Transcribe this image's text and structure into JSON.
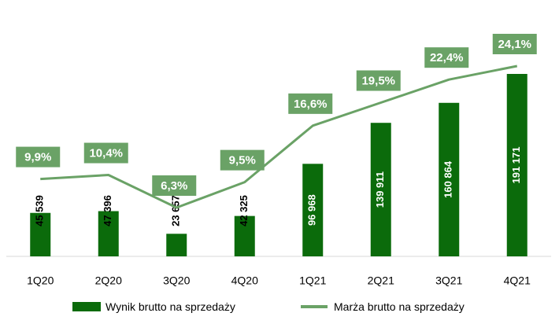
{
  "colors": {
    "bar": "#0b6b0b",
    "line": "#6aa266",
    "label_box": "#6aa266",
    "label_text": "#ffffff",
    "axis": "#d9d9d9"
  },
  "chart_data": {
    "type": "bar",
    "categories": [
      "1Q20",
      "2Q20",
      "3Q20",
      "4Q20",
      "1Q21",
      "2Q21",
      "3Q21",
      "4Q21"
    ],
    "series": [
      {
        "name": "Wynik brutto na sprzedaży",
        "type": "bar",
        "values": [
          45539,
          47396,
          23657,
          42325,
          96968,
          139911,
          160864,
          191171
        ],
        "labels": [
          "45 539",
          "47 396",
          "23 657",
          "42 325",
          "96 968",
          "139 911",
          "160 864",
          "191 171"
        ]
      },
      {
        "name": "Marża brutto na sprzedaży",
        "type": "line",
        "values": [
          9.9,
          10.4,
          6.3,
          9.5,
          16.6,
          19.5,
          22.4,
          24.1
        ],
        "labels": [
          "9,9%",
          "10,4%",
          "6,3%",
          "9,5%",
          "16,6%",
          "19,5%",
          "22,4%",
          "24,1%"
        ]
      }
    ],
    "legend_position": "bottom",
    "grid": false
  }
}
